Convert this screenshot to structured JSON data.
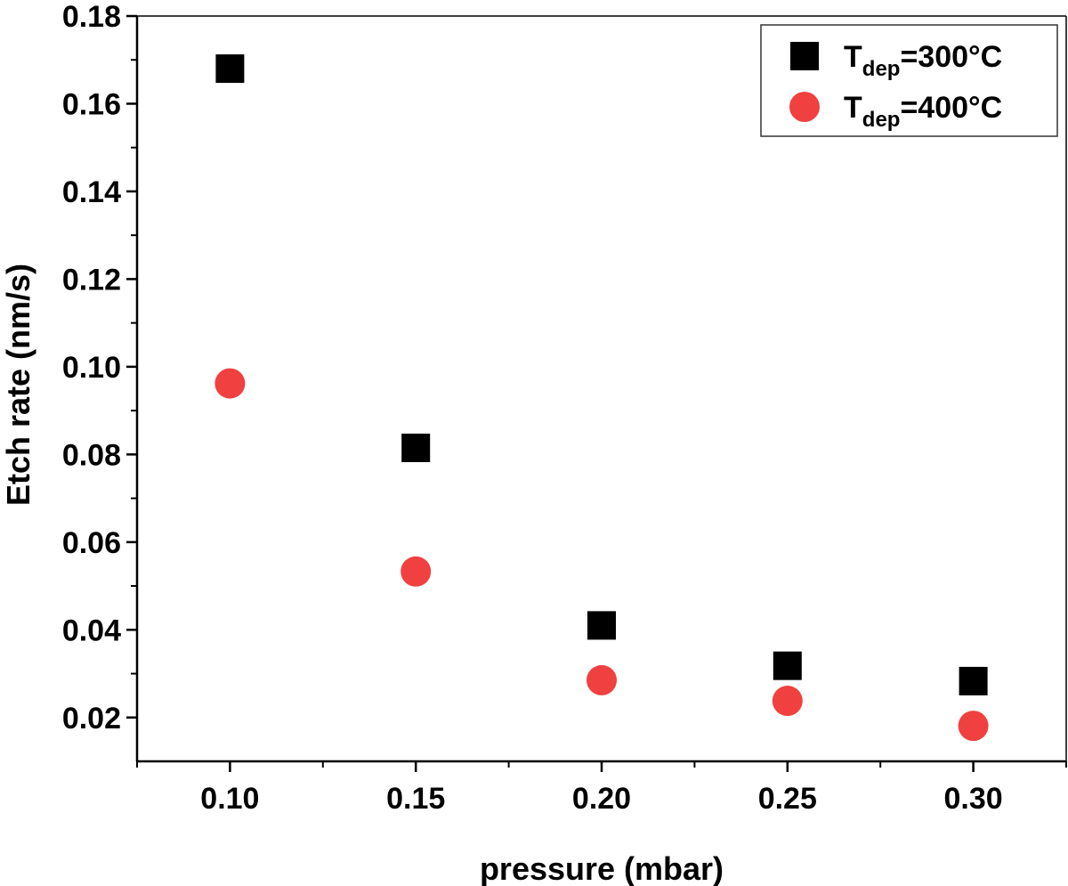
{
  "chart_data": {
    "type": "scatter",
    "xlabel": "pressure (mbar)",
    "ylabel": "Etch rate (nm/s)",
    "xlim": [
      0.075,
      0.325
    ],
    "ylim": [
      0.01,
      0.18
    ],
    "x_ticks": [
      0.1,
      0.15,
      0.2,
      0.25,
      0.3
    ],
    "x_tick_labels": [
      "0.10",
      "0.15",
      "0.20",
      "0.25",
      "0.30"
    ],
    "y_ticks": [
      0.02,
      0.04,
      0.06,
      0.08,
      0.1,
      0.12,
      0.14,
      0.16,
      0.18
    ],
    "y_tick_labels": [
      "0.02",
      "0.04",
      "0.06",
      "0.08",
      "0.10",
      "0.12",
      "0.14",
      "0.16",
      "0.18"
    ],
    "grid": false,
    "legend_position": "top-right",
    "series": [
      {
        "name": "Tdep=300°C",
        "label_main": "T",
        "label_sub": "dep",
        "label_rest": "=300°C",
        "marker": "square",
        "color": "#000000",
        "x": [
          0.1,
          0.15,
          0.2,
          0.25,
          0.3
        ],
        "y": [
          0.168,
          0.0815,
          0.041,
          0.0318,
          0.0283
        ]
      },
      {
        "name": "Tdep=400°C",
        "label_main": "T",
        "label_sub": "dep",
        "label_rest": "=400°C",
        "marker": "circle",
        "color": "#f04040",
        "x": [
          0.1,
          0.15,
          0.2,
          0.25,
          0.3
        ],
        "y": [
          0.0962,
          0.0533,
          0.0285,
          0.0238,
          0.0181
        ]
      }
    ]
  }
}
